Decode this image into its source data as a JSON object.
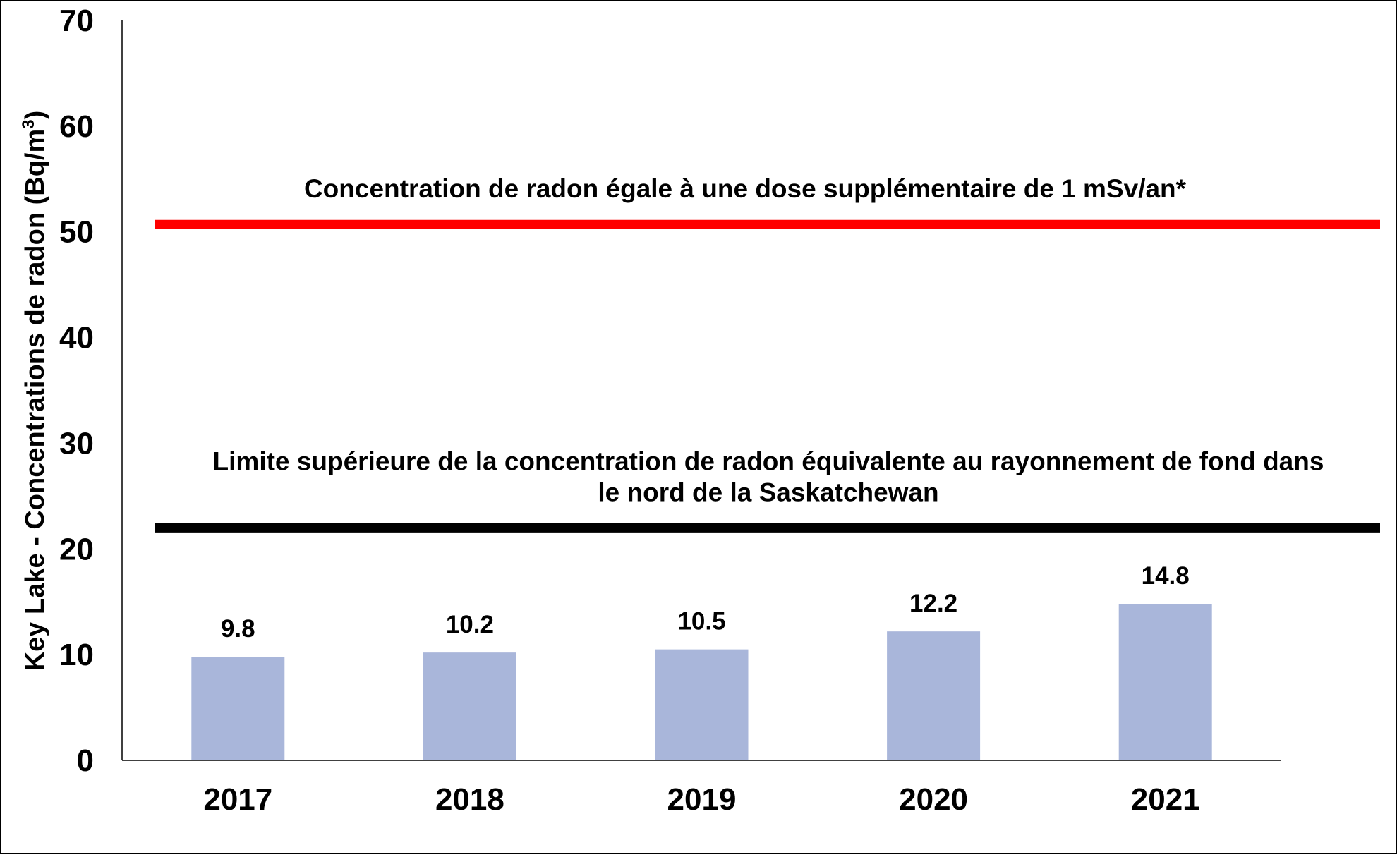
{
  "chart_data": {
    "type": "bar",
    "categories": [
      "2017",
      "2018",
      "2019",
      "2020",
      "2021"
    ],
    "values": [
      9.8,
      10.2,
      10.5,
      12.2,
      14.8
    ],
    "value_labels": [
      "9.8",
      "10.2",
      "10.5",
      "12.2",
      "14.8"
    ],
    "ylabel": "Key Lake - Concentrations de radon (Bq/m",
    "ylabel_superscript": "3",
    "ylabel_close": ")",
    "ylim": [
      0,
      70
    ],
    "yticks": [
      0,
      10,
      20,
      30,
      40,
      50,
      60,
      70
    ],
    "grid": false,
    "legend": "none",
    "bar_color": "#a9b6da",
    "reference_lines": [
      {
        "value": 50.7,
        "color": "#ff0000",
        "label_lines": [
          "Concentration de radon égale à une dose supplémentaire de 1 mSv/an*"
        ]
      },
      {
        "value": 22.0,
        "color": "#000000",
        "label_lines": [
          "Limite supérieure de la concentration de radon équivalente au rayonnement de fond dans",
          "le nord de la Saskatchewan"
        ]
      }
    ]
  }
}
